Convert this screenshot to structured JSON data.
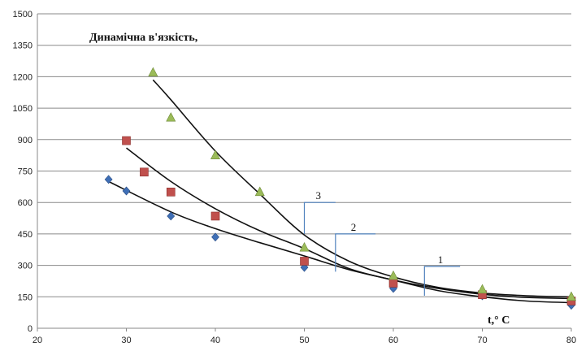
{
  "chart_data": {
    "type": "scatter",
    "title": "Динамічна в'язкість,",
    "xlabel": "t,° C",
    "ylabel": "",
    "xlim": [
      20,
      80
    ],
    "ylim": [
      0,
      1500
    ],
    "x_ticks": [
      20,
      30,
      40,
      50,
      60,
      70,
      80
    ],
    "y_ticks": [
      0,
      150,
      300,
      450,
      600,
      750,
      900,
      1050,
      1200,
      1350,
      1500
    ],
    "grid": "horizontal",
    "series": [
      {
        "label": "1",
        "color": "#3f6fb6",
        "marker": "diamond",
        "points": [
          [
            28,
            710
          ],
          [
            30,
            655
          ],
          [
            35,
            535
          ],
          [
            40,
            435
          ],
          [
            50,
            290
          ],
          [
            60,
            190
          ],
          [
            70,
            155
          ],
          [
            80,
            110
          ]
        ],
        "trend": [
          [
            28,
            700
          ],
          [
            35,
            555
          ],
          [
            40,
            475
          ],
          [
            45,
            408
          ],
          [
            50,
            345
          ],
          [
            55,
            280
          ],
          [
            60,
            230
          ],
          [
            65,
            180
          ],
          [
            70,
            150
          ],
          [
            75,
            130
          ],
          [
            80,
            122
          ]
        ]
      },
      {
        "label": "2",
        "color": "#c0504d",
        "marker": "square",
        "points": [
          [
            30,
            895
          ],
          [
            32,
            745
          ],
          [
            35,
            650
          ],
          [
            40,
            535
          ],
          [
            50,
            320
          ],
          [
            60,
            215
          ],
          [
            70,
            160
          ],
          [
            80,
            130
          ]
        ],
        "trend": [
          [
            30,
            860
          ],
          [
            35,
            700
          ],
          [
            40,
            570
          ],
          [
            45,
            465
          ],
          [
            50,
            380
          ],
          [
            55,
            285
          ],
          [
            60,
            230
          ],
          [
            65,
            190
          ],
          [
            70,
            162
          ],
          [
            75,
            147
          ],
          [
            80,
            142
          ]
        ]
      },
      {
        "label": "3",
        "color": "#9bbb59",
        "marker": "triangle",
        "points": [
          [
            33,
            1220
          ],
          [
            35,
            1005
          ],
          [
            40,
            825
          ],
          [
            45,
            650
          ],
          [
            50,
            385
          ],
          [
            60,
            250
          ],
          [
            70,
            185
          ],
          [
            80,
            150
          ]
        ],
        "trend": [
          [
            33,
            1185
          ],
          [
            35,
            1090
          ],
          [
            40,
            845
          ],
          [
            45,
            640
          ],
          [
            50,
            445
          ],
          [
            55,
            320
          ],
          [
            60,
            245
          ],
          [
            65,
            195
          ],
          [
            70,
            168
          ],
          [
            75,
            155
          ],
          [
            80,
            150
          ]
        ]
      }
    ],
    "curve_callouts": [
      {
        "label": "3",
        "anchor": [
          50,
          600
        ],
        "end": [
          53.5,
          600
        ],
        "low": [
          50,
          450
        ]
      },
      {
        "label": "2",
        "anchor": [
          53.5,
          450
        ],
        "end": [
          58,
          450
        ],
        "low": [
          53.5,
          270
        ]
      },
      {
        "label": "1",
        "anchor": [
          63.5,
          295
        ],
        "end": [
          67.5,
          295
        ],
        "low": [
          63.5,
          155
        ]
      }
    ]
  }
}
